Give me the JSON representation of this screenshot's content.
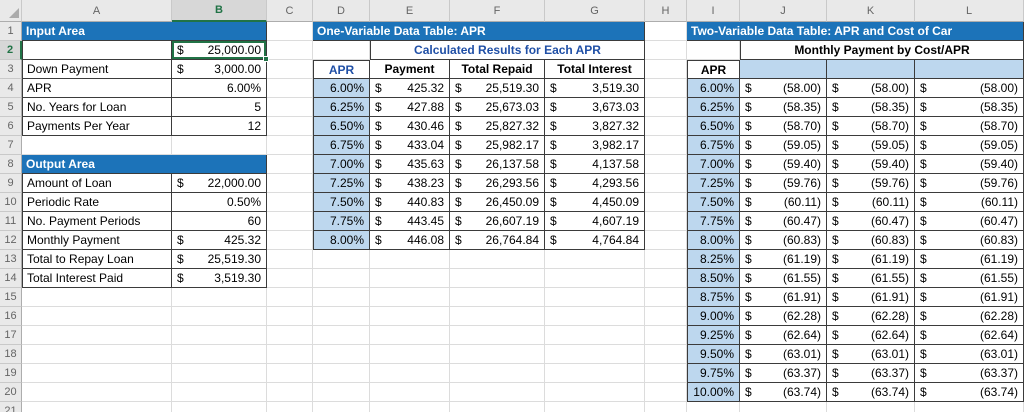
{
  "sheet": {
    "columns": [
      "A",
      "B",
      "C",
      "D",
      "E",
      "F",
      "G",
      "H",
      "I",
      "J",
      "K",
      "L"
    ],
    "row_count": 21,
    "selected_cell": "B2",
    "colors": {
      "band_blue": "#1C73B9",
      "light_blue_fill": "#BDD7EE",
      "blue_heading_text": "#1F4FA6",
      "selection_green": "#217346"
    }
  },
  "input_area": {
    "title": "Input Area",
    "rows": [
      {
        "label": "",
        "cur": "$",
        "value": "25,000.00"
      },
      {
        "label": "Down Payment",
        "cur": "$",
        "value": "3,000.00"
      },
      {
        "label": "APR",
        "cur": "",
        "value": "6.00%"
      },
      {
        "label": "No. Years for Loan",
        "cur": "",
        "value": "5"
      },
      {
        "label": "Payments Per Year",
        "cur": "",
        "value": "12"
      }
    ]
  },
  "output_area": {
    "title": "Output Area",
    "rows": [
      {
        "label": "Amount of Loan",
        "cur": "$",
        "value": "22,000.00"
      },
      {
        "label": "Periodic Rate",
        "cur": "",
        "value": "0.50%"
      },
      {
        "label": "No. Payment Periods",
        "cur": "",
        "value": "60"
      },
      {
        "label": "Monthly Payment",
        "cur": "$",
        "value": "425.32"
      },
      {
        "label": "Total to Repay Loan",
        "cur": "$",
        "value": "25,519.30"
      },
      {
        "label": "Total Interest Paid",
        "cur": "$",
        "value": "3,519.30"
      }
    ]
  },
  "one_var_table": {
    "title": "One-Variable Data Table: APR",
    "subtitle": "Calculated Results for Each APR",
    "apr_header": "APR",
    "cur": "$",
    "headers": [
      "Payment",
      "Total Repaid",
      "Total Interest"
    ],
    "rows": [
      {
        "apr": "6.00%",
        "payment": "425.32",
        "repaid": "25,519.30",
        "interest": "3,519.30"
      },
      {
        "apr": "6.25%",
        "payment": "427.88",
        "repaid": "25,673.03",
        "interest": "3,673.03"
      },
      {
        "apr": "6.50%",
        "payment": "430.46",
        "repaid": "25,827.32",
        "interest": "3,827.32"
      },
      {
        "apr": "6.75%",
        "payment": "433.04",
        "repaid": "25,982.17",
        "interest": "3,982.17"
      },
      {
        "apr": "7.00%",
        "payment": "435.63",
        "repaid": "26,137.58",
        "interest": "4,137.58"
      },
      {
        "apr": "7.25%",
        "payment": "438.23",
        "repaid": "26,293.56",
        "interest": "4,293.56"
      },
      {
        "apr": "7.50%",
        "payment": "440.83",
        "repaid": "26,450.09",
        "interest": "4,450.09"
      },
      {
        "apr": "7.75%",
        "payment": "443.45",
        "repaid": "26,607.19",
        "interest": "4,607.19"
      },
      {
        "apr": "8.00%",
        "payment": "446.08",
        "repaid": "26,764.84",
        "interest": "4,764.84"
      }
    ]
  },
  "two_var_table": {
    "title": "Two-Variable Data Table: APR and Cost of Car",
    "subtitle": "Monthly Payment by Cost/APR",
    "apr_header": "APR",
    "cur": "$",
    "rows": [
      {
        "apr": "6.00%",
        "values": [
          "(58.00)",
          "(58.00)",
          "(58.00)"
        ]
      },
      {
        "apr": "6.25%",
        "values": [
          "(58.35)",
          "(58.35)",
          "(58.35)"
        ]
      },
      {
        "apr": "6.50%",
        "values": [
          "(58.70)",
          "(58.70)",
          "(58.70)"
        ]
      },
      {
        "apr": "6.75%",
        "values": [
          "(59.05)",
          "(59.05)",
          "(59.05)"
        ]
      },
      {
        "apr": "7.00%",
        "values": [
          "(59.40)",
          "(59.40)",
          "(59.40)"
        ]
      },
      {
        "apr": "7.25%",
        "values": [
          "(59.76)",
          "(59.76)",
          "(59.76)"
        ]
      },
      {
        "apr": "7.50%",
        "values": [
          "(60.11)",
          "(60.11)",
          "(60.11)"
        ]
      },
      {
        "apr": "7.75%",
        "values": [
          "(60.47)",
          "(60.47)",
          "(60.47)"
        ]
      },
      {
        "apr": "8.00%",
        "values": [
          "(60.83)",
          "(60.83)",
          "(60.83)"
        ]
      },
      {
        "apr": "8.25%",
        "values": [
          "(61.19)",
          "(61.19)",
          "(61.19)"
        ]
      },
      {
        "apr": "8.50%",
        "values": [
          "(61.55)",
          "(61.55)",
          "(61.55)"
        ]
      },
      {
        "apr": "8.75%",
        "values": [
          "(61.91)",
          "(61.91)",
          "(61.91)"
        ]
      },
      {
        "apr": "9.00%",
        "values": [
          "(62.28)",
          "(62.28)",
          "(62.28)"
        ]
      },
      {
        "apr": "9.25%",
        "values": [
          "(62.64)",
          "(62.64)",
          "(62.64)"
        ]
      },
      {
        "apr": "9.50%",
        "values": [
          "(63.01)",
          "(63.01)",
          "(63.01)"
        ]
      },
      {
        "apr": "9.75%",
        "values": [
          "(63.37)",
          "(63.37)",
          "(63.37)"
        ]
      },
      {
        "apr": "10.00%",
        "values": [
          "(63.74)",
          "(63.74)",
          "(63.74)"
        ]
      }
    ]
  }
}
